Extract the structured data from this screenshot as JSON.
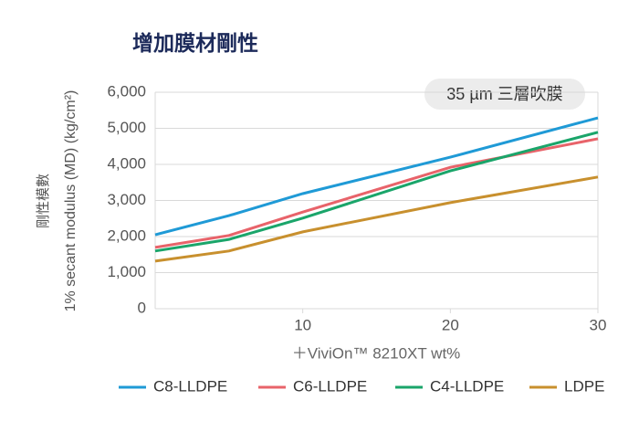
{
  "chart_data": {
    "type": "line",
    "title": "增加膜材剛性",
    "annotation": "35 µm 三層吹膜",
    "y_label": "1% secant modulus (MD) (kg/cm²)",
    "y_label_zh": "剛性模數",
    "x_label": "＋ViviOn™ 8210XT wt%",
    "x": [
      0,
      5,
      10,
      20,
      30
    ],
    "series": [
      {
        "name": "C8-LLDPE",
        "color": "#1f9ad6",
        "values": [
          2050,
          2580,
          3190,
          4200,
          5290
        ]
      },
      {
        "name": "C6-LLDPE",
        "color": "#e8636a",
        "values": [
          1700,
          2030,
          2680,
          3920,
          4710
        ]
      },
      {
        "name": "C4-LLDPE",
        "color": "#1aa56a",
        "values": [
          1600,
          1920,
          2510,
          3820,
          4890
        ]
      },
      {
        "name": "LDPE",
        "color": "#c8902e",
        "values": [
          1320,
          1600,
          2130,
          2940,
          3650
        ]
      }
    ],
    "xlim": [
      0,
      30
    ],
    "xticks": [
      10,
      20,
      30
    ],
    "ylim": [
      0,
      6000
    ],
    "yticks": [
      0,
      {
        "value": 1000,
        "label": "1,000"
      },
      {
        "value": 2000,
        "label": "2,000"
      },
      {
        "value": 3000,
        "label": "3,000"
      },
      {
        "value": 4000,
        "label": "4,000"
      },
      {
        "value": 5000,
        "label": "5,000"
      },
      {
        "value": 6000,
        "label": "6,000"
      }
    ],
    "grid": true
  }
}
